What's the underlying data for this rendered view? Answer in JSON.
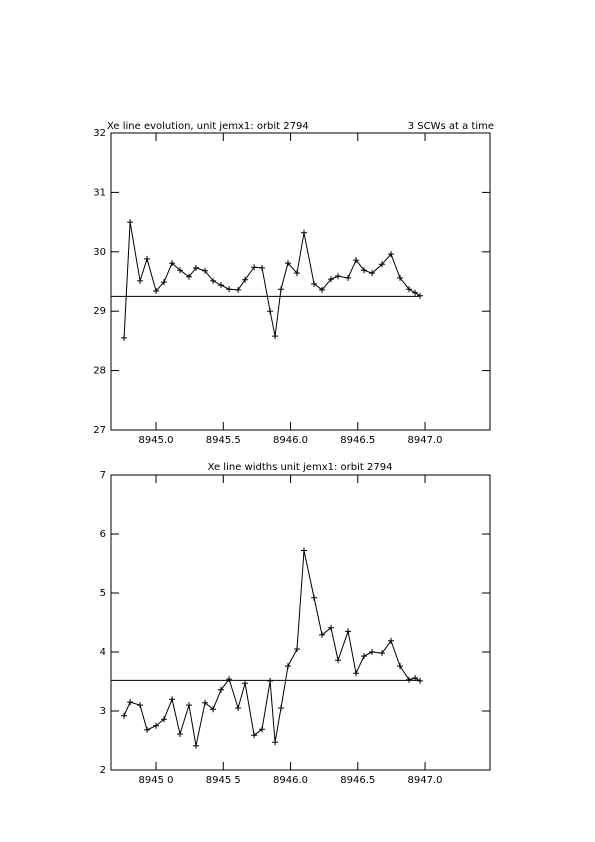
{
  "chart_data": [
    {
      "type": "line",
      "title": "Xe line evolution, unit jemx1: orbit 2794",
      "subtitle": "3 SCWs at a time",
      "x": [
        8944.762,
        8944.807,
        8944.881,
        8944.933,
        8945.0,
        8945.059,
        8945.119,
        8945.178,
        8945.245,
        8945.297,
        8945.364,
        8945.424,
        8945.483,
        8945.543,
        8945.61,
        8945.662,
        8945.729,
        8945.788,
        8945.848,
        8945.885,
        8945.929,
        8945.981,
        8946.048,
        8946.1,
        8946.175,
        8946.234,
        8946.301,
        8946.353,
        8946.428,
        8946.487,
        8946.546,
        8946.606,
        8946.68,
        8946.747,
        8946.814,
        8946.881,
        8946.926,
        8946.963
      ],
      "values": [
        28.55,
        30.5,
        29.51,
        29.88,
        29.34,
        29.49,
        29.81,
        29.69,
        29.58,
        29.73,
        29.68,
        29.51,
        29.44,
        29.37,
        29.36,
        29.53,
        29.74,
        29.73,
        29.0,
        28.58,
        29.37,
        29.81,
        29.64,
        30.32,
        29.46,
        29.36,
        29.54,
        29.59,
        29.56,
        29.86,
        29.69,
        29.64,
        29.79,
        29.96,
        29.56,
        29.37,
        29.31,
        29.26
      ],
      "color": "#000000",
      "reference_line": 29.25,
      "xlim": [
        8944.665,
        8947.483
      ],
      "xticks": [
        {
          "value": 8945.0,
          "label": "8945.0"
        },
        {
          "value": 8945.5,
          "label": "8945.5"
        },
        {
          "value": 8946.0,
          "label": "8946.0"
        },
        {
          "value": 8946.5,
          "label": "8946.5"
        },
        {
          "value": 8947.0,
          "label": "8947.0"
        }
      ],
      "ylim": [
        27,
        32
      ],
      "yticks": [
        27,
        28,
        29,
        30,
        31,
        32
      ]
    },
    {
      "type": "line",
      "title": "Xe line widths unit jemx1: orbit 2794",
      "x": [
        8944.762,
        8944.807,
        8944.881,
        8944.933,
        8945.0,
        8945.059,
        8945.119,
        8945.178,
        8945.245,
        8945.297,
        8945.364,
        8945.424,
        8945.483,
        8945.543,
        8945.61,
        8945.662,
        8945.729,
        8945.788,
        8945.848,
        8945.885,
        8945.929,
        8945.981,
        8946.048,
        8946.1,
        8946.175,
        8946.234,
        8946.301,
        8946.353,
        8946.428,
        8946.487,
        8946.546,
        8946.606,
        8946.68,
        8946.747,
        8946.814,
        8946.881,
        8946.926,
        8946.963
      ],
      "values": [
        2.92,
        3.15,
        3.1,
        2.68,
        2.75,
        2.86,
        3.2,
        2.61,
        3.1,
        2.41,
        3.14,
        3.03,
        3.36,
        3.54,
        3.05,
        3.47,
        2.59,
        2.69,
        3.51,
        2.47,
        3.05,
        3.76,
        4.05,
        5.72,
        4.92,
        4.29,
        4.41,
        3.86,
        4.35,
        3.64,
        3.93,
        4.0,
        3.98,
        4.19,
        3.76,
        3.53,
        3.56,
        3.51
      ],
      "color": "#000000",
      "reference_line": 3.52,
      "xlim": [
        8944.665,
        8947.483
      ],
      "xticks": [
        {
          "value": 8945.0,
          "label": "8945 0"
        },
        {
          "value": 8945.5,
          "label": "8945 5"
        },
        {
          "value": 8946.0,
          "label": "8946.0"
        },
        {
          "value": 8946.5,
          "label": "8946.5"
        },
        {
          "value": 8947.0,
          "label": "8947.0"
        }
      ],
      "ylim": [
        2,
        7
      ],
      "yticks": [
        2,
        3,
        4,
        5,
        6,
        7
      ]
    }
  ]
}
